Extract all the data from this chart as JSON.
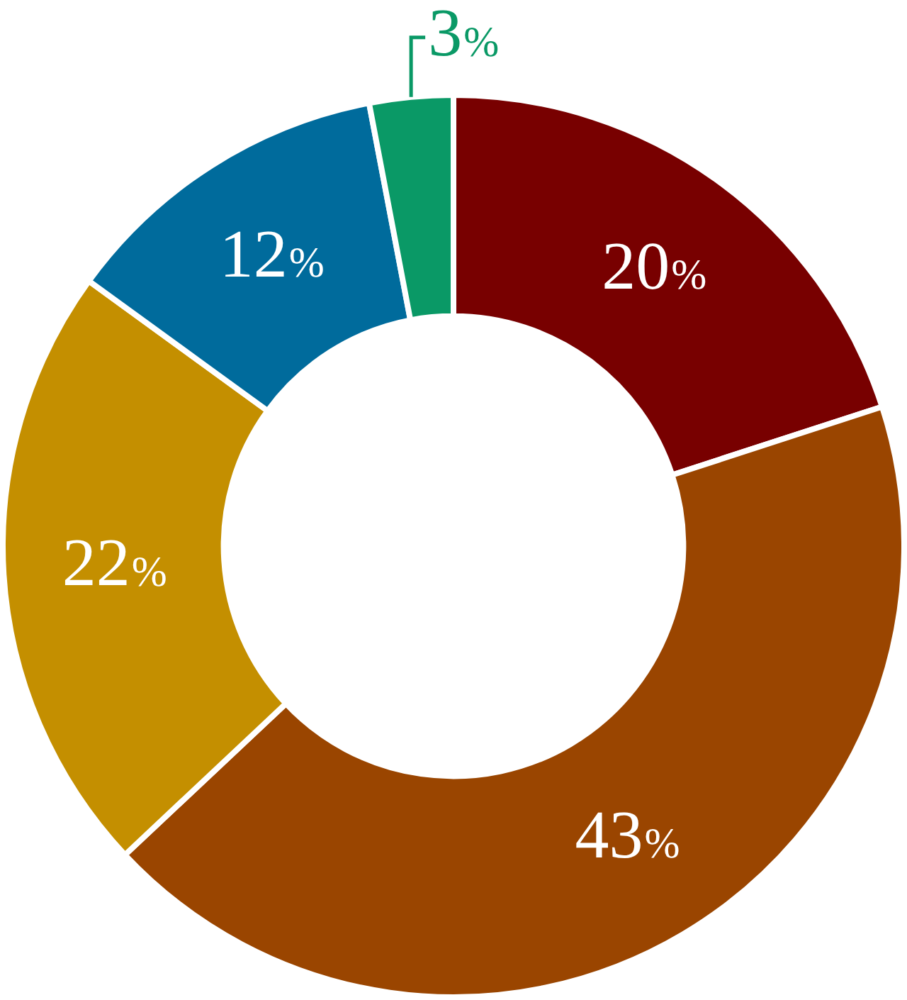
{
  "chart_data": {
    "type": "donut",
    "categories": [
      null,
      null,
      null,
      null,
      null
    ],
    "values": [
      20,
      43,
      22,
      12,
      3
    ],
    "colors": [
      "#780000",
      "#9a4500",
      "#c48f00",
      "#006b9c",
      "#0a9966"
    ],
    "value_labels": [
      "20%",
      "43%",
      "22%",
      "12%",
      "3%"
    ],
    "legend": false
  }
}
